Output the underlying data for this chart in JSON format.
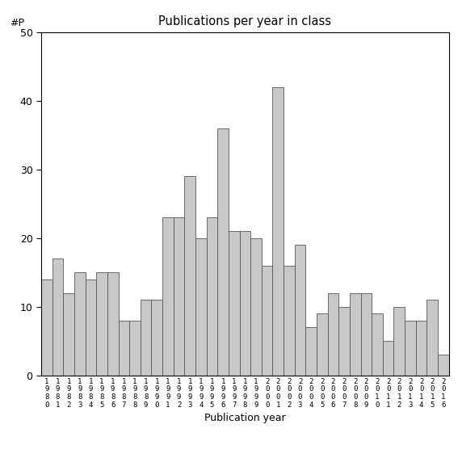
{
  "title": "Publications per year in class",
  "xlabel": "Publication year",
  "ylabel": "#P",
  "ylim": [
    0,
    50
  ],
  "yticks": [
    0,
    10,
    20,
    30,
    40,
    50
  ],
  "bar_color": "#c8c8c8",
  "bar_edgecolor": "#555555",
  "background_color": "#ffffff",
  "years": [
    1980,
    1981,
    1982,
    1983,
    1984,
    1985,
    1986,
    1987,
    1988,
    1989,
    1990,
    1991,
    1992,
    1993,
    1994,
    1995,
    1996,
    1997,
    1998,
    1999,
    2000,
    2001,
    2002,
    2003,
    2004,
    2005,
    2006,
    2007,
    2008,
    2009,
    2010,
    2011,
    2012,
    2013,
    2014,
    2015,
    2016
  ],
  "values": [
    14,
    17,
    12,
    15,
    14,
    15,
    15,
    8,
    8,
    11,
    11,
    23,
    23,
    29,
    20,
    23,
    36,
    21,
    21,
    20,
    16,
    42,
    16,
    19,
    7,
    9,
    12,
    10,
    12,
    12,
    9,
    5,
    10,
    8,
    8,
    11,
    3
  ]
}
